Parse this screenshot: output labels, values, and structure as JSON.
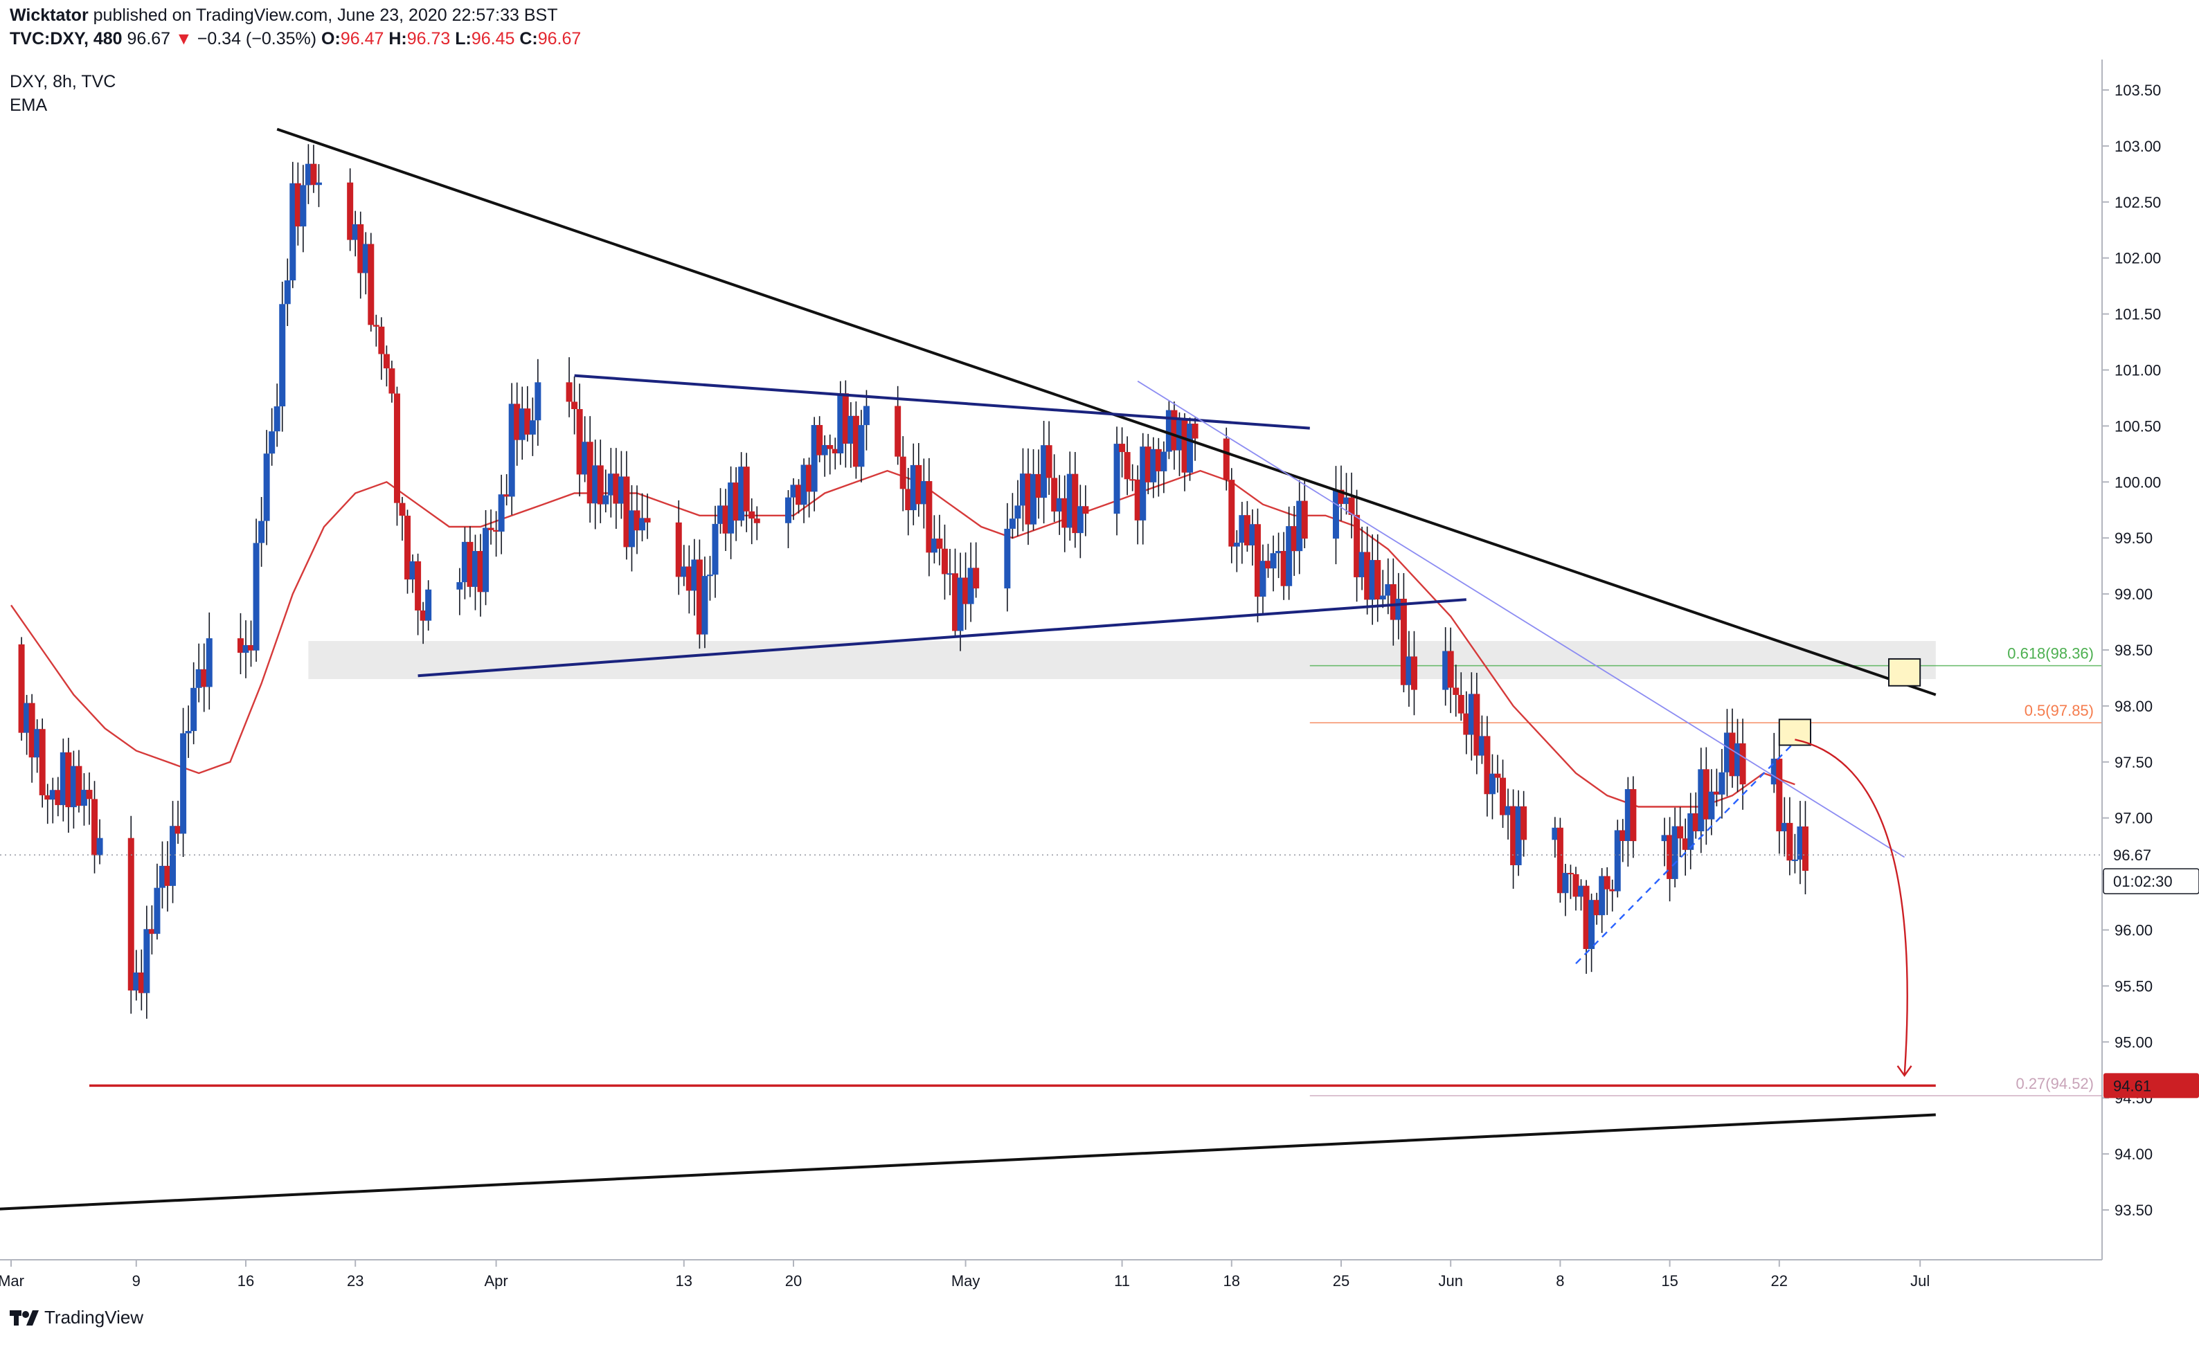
{
  "header": {
    "author": "Wicktator",
    "published_text": "published on TradingView.com, June 23, 2020 22:57:33 BST",
    "symbol": "TVC:DXY, 480",
    "last": "96.67",
    "change": "−0.34 (−0.35%)",
    "o_label": "O:",
    "o": "96.47",
    "h_label": "H:",
    "h": "96.73",
    "l_label": "L:",
    "l": "96.45",
    "c_label": "C:",
    "c": "96.67"
  },
  "legend": {
    "title": "DXY, 8h, TVC",
    "indicator": "EMA"
  },
  "footer": {
    "brand": "TradingView"
  },
  "colors": {
    "up": "#2157ba",
    "down": "#cc1f24",
    "ema": "#d63a3a",
    "trend": "#111111",
    "channel": "#1a237e",
    "fib_618": "#4caf50",
    "fib_05": "#f57c4d",
    "fib_027": "#c8a3b8",
    "zone": "#e6e6e6",
    "price_tag": "#131722",
    "target_tag": "#cc1f24"
  },
  "chart_data": {
    "type": "candlestick",
    "title": "DXY, 8h, TVC",
    "ylim": [
      93.25,
      103.75
    ],
    "yticks": [
      "93.50",
      "94.00",
      "94.50",
      "95.00",
      "95.50",
      "96.00",
      "96.50",
      "97.00",
      "97.50",
      "98.00",
      "98.50",
      "99.00",
      "99.50",
      "100.00",
      "100.50",
      "101.00",
      "101.50",
      "102.00",
      "102.50",
      "103.00",
      "103.50"
    ],
    "xticks": [
      {
        "label": "Mar",
        "date": "2020-03-01"
      },
      {
        "label": "9",
        "date": "2020-03-09"
      },
      {
        "label": "16",
        "date": "2020-03-16"
      },
      {
        "label": "23",
        "date": "2020-03-23"
      },
      {
        "label": "Apr",
        "date": "2020-04-01"
      },
      {
        "label": "13",
        "date": "2020-04-13"
      },
      {
        "label": "20",
        "date": "2020-04-20"
      },
      {
        "label": "May",
        "date": "2020-05-01"
      },
      {
        "label": "11",
        "date": "2020-05-11"
      },
      {
        "label": "18",
        "date": "2020-05-18"
      },
      {
        "label": "25",
        "date": "2020-05-25"
      },
      {
        "label": "Jun",
        "date": "2020-06-01"
      },
      {
        "label": "8",
        "date": "2020-06-08"
      },
      {
        "label": "15",
        "date": "2020-06-15"
      },
      {
        "label": "22",
        "date": "2020-06-22"
      },
      {
        "label": "Jul",
        "date": "2020-07-01"
      }
    ],
    "close_path": [
      [
        "2020-03-01",
        98.3
      ],
      [
        "2020-03-02",
        97.9
      ],
      [
        "2020-03-03",
        97.3
      ],
      [
        "2020-03-04",
        97.2
      ],
      [
        "2020-03-05",
        97.4
      ],
      [
        "2020-03-06",
        97.0
      ],
      [
        "2020-03-07",
        96.6
      ],
      [
        "2020-03-08",
        96.2
      ],
      [
        "2020-03-09",
        95.3
      ],
      [
        "2020-03-10",
        96.2
      ],
      [
        "2020-03-11",
        96.5
      ],
      [
        "2020-03-12",
        97.5
      ],
      [
        "2020-03-13",
        98.4
      ],
      [
        "2020-03-14",
        98.3
      ],
      [
        "2020-03-15",
        98.7
      ],
      [
        "2020-03-16",
        98.4
      ],
      [
        "2020-03-17",
        99.7
      ],
      [
        "2020-03-18",
        100.9
      ],
      [
        "2020-03-19",
        102.4
      ],
      [
        "2020-03-20",
        102.8
      ],
      [
        "2020-03-21",
        102.3
      ],
      [
        "2020-03-22",
        102.7
      ],
      [
        "2020-03-23",
        102.2
      ],
      [
        "2020-03-24",
        101.6
      ],
      [
        "2020-03-25",
        101.0
      ],
      [
        "2020-03-26",
        99.6
      ],
      [
        "2020-03-27",
        98.8
      ],
      [
        "2020-03-28",
        99.1
      ],
      [
        "2020-03-29",
        99.0
      ],
      [
        "2020-03-30",
        99.2
      ],
      [
        "2020-03-31",
        99.3
      ],
      [
        "2020-04-01",
        99.6
      ],
      [
        "2020-04-02",
        100.4
      ],
      [
        "2020-04-03",
        100.6
      ],
      [
        "2020-04-04",
        100.7
      ],
      [
        "2020-04-05",
        100.8
      ],
      [
        "2020-04-06",
        100.6
      ],
      [
        "2020-04-07",
        99.9
      ],
      [
        "2020-04-08",
        100.0
      ],
      [
        "2020-04-09",
        99.8
      ],
      [
        "2020-04-10",
        99.6
      ],
      [
        "2020-04-11",
        99.5
      ],
      [
        "2020-04-12",
        99.4
      ],
      [
        "2020-04-13",
        99.2
      ],
      [
        "2020-04-14",
        98.9
      ],
      [
        "2020-04-15",
        99.5
      ],
      [
        "2020-04-16",
        99.9
      ],
      [
        "2020-04-17",
        99.8
      ],
      [
        "2020-04-18",
        99.6
      ],
      [
        "2020-04-19",
        99.7
      ],
      [
        "2020-04-20",
        99.8
      ],
      [
        "2020-04-21",
        100.2
      ],
      [
        "2020-04-22",
        100.3
      ],
      [
        "2020-04-23",
        100.5
      ],
      [
        "2020-04-24",
        100.4
      ],
      [
        "2020-04-25",
        100.6
      ],
      [
        "2020-04-26",
        100.3
      ],
      [
        "2020-04-27",
        100.0
      ],
      [
        "2020-04-28",
        99.9
      ],
      [
        "2020-04-29",
        99.5
      ],
      [
        "2020-04-30",
        99.0
      ],
      [
        "2020-05-01",
        99.0
      ],
      [
        "2020-05-02",
        99.1
      ],
      [
        "2020-05-03",
        99.4
      ],
      [
        "2020-05-04",
        99.7
      ],
      [
        "2020-05-05",
        99.9
      ],
      [
        "2020-05-06",
        100.1
      ],
      [
        "2020-05-07",
        99.8
      ],
      [
        "2020-05-08",
        99.7
      ],
      [
        "2020-05-09",
        99.9
      ],
      [
        "2020-05-10",
        100.0
      ],
      [
        "2020-05-11",
        100.2
      ],
      [
        "2020-05-12",
        99.9
      ],
      [
        "2020-05-13",
        100.2
      ],
      [
        "2020-05-14",
        100.4
      ],
      [
        "2020-05-15",
        100.4
      ],
      [
        "2020-05-16",
        100.3
      ],
      [
        "2020-05-17",
        100.3
      ],
      [
        "2020-05-18",
        99.6
      ],
      [
        "2020-05-19",
        99.5
      ],
      [
        "2020-05-20",
        99.2
      ],
      [
        "2020-05-21",
        99.3
      ],
      [
        "2020-05-22",
        99.5
      ],
      [
        "2020-05-23",
        99.7
      ],
      [
        "2020-05-24",
        99.8
      ],
      [
        "2020-05-25",
        99.9
      ],
      [
        "2020-05-26",
        99.4
      ],
      [
        "2020-05-27",
        99.0
      ],
      [
        "2020-05-28",
        99.1
      ],
      [
        "2020-05-29",
        98.4
      ],
      [
        "2020-05-30",
        98.3
      ],
      [
        "2020-05-31",
        98.2
      ],
      [
        "2020-06-01",
        98.2
      ],
      [
        "2020-06-02",
        97.9
      ],
      [
        "2020-06-03",
        97.6
      ],
      [
        "2020-06-04",
        97.2
      ],
      [
        "2020-06-05",
        96.9
      ],
      [
        "2020-06-06",
        96.8
      ],
      [
        "2020-06-07",
        96.9
      ],
      [
        "2020-06-08",
        96.6
      ],
      [
        "2020-06-09",
        96.3
      ],
      [
        "2020-06-10",
        96.1
      ],
      [
        "2020-06-11",
        96.4
      ],
      [
        "2020-06-12",
        96.9
      ],
      [
        "2020-06-13",
        97.1
      ],
      [
        "2020-06-14",
        97.0
      ],
      [
        "2020-06-15",
        96.6
      ],
      [
        "2020-06-16",
        96.9
      ],
      [
        "2020-06-17",
        97.1
      ],
      [
        "2020-06-18",
        97.3
      ],
      [
        "2020-06-19",
        97.6
      ],
      [
        "2020-06-20",
        97.5
      ],
      [
        "2020-06-21",
        97.6
      ],
      [
        "2020-06-22",
        97.0
      ],
      [
        "2020-06-23",
        96.67
      ]
    ],
    "ema_path": [
      [
        "2020-03-01",
        98.9
      ],
      [
        "2020-03-03",
        98.5
      ],
      [
        "2020-03-05",
        98.1
      ],
      [
        "2020-03-07",
        97.8
      ],
      [
        "2020-03-09",
        97.6
      ],
      [
        "2020-03-11",
        97.5
      ],
      [
        "2020-03-13",
        97.4
      ],
      [
        "2020-03-15",
        97.5
      ],
      [
        "2020-03-17",
        98.2
      ],
      [
        "2020-03-19",
        99.0
      ],
      [
        "2020-03-21",
        99.6
      ],
      [
        "2020-03-23",
        99.9
      ],
      [
        "2020-03-25",
        100.0
      ],
      [
        "2020-03-27",
        99.8
      ],
      [
        "2020-03-29",
        99.6
      ],
      [
        "2020-03-31",
        99.6
      ],
      [
        "2020-04-02",
        99.7
      ],
      [
        "2020-04-04",
        99.8
      ],
      [
        "2020-04-06",
        99.9
      ],
      [
        "2020-04-08",
        99.9
      ],
      [
        "2020-04-10",
        99.9
      ],
      [
        "2020-04-12",
        99.8
      ],
      [
        "2020-04-14",
        99.7
      ],
      [
        "2020-04-16",
        99.7
      ],
      [
        "2020-04-18",
        99.7
      ],
      [
        "2020-04-20",
        99.7
      ],
      [
        "2020-04-22",
        99.9
      ],
      [
        "2020-04-24",
        100.0
      ],
      [
        "2020-04-26",
        100.1
      ],
      [
        "2020-04-28",
        100.0
      ],
      [
        "2020-04-30",
        99.8
      ],
      [
        "2020-05-02",
        99.6
      ],
      [
        "2020-05-04",
        99.5
      ],
      [
        "2020-05-06",
        99.6
      ],
      [
        "2020-05-08",
        99.7
      ],
      [
        "2020-05-10",
        99.8
      ],
      [
        "2020-05-12",
        99.9
      ],
      [
        "2020-05-14",
        100.0
      ],
      [
        "2020-05-16",
        100.1
      ],
      [
        "2020-05-18",
        100.0
      ],
      [
        "2020-05-20",
        99.8
      ],
      [
        "2020-05-22",
        99.7
      ],
      [
        "2020-05-24",
        99.7
      ],
      [
        "2020-05-26",
        99.6
      ],
      [
        "2020-05-28",
        99.4
      ],
      [
        "2020-05-30",
        99.1
      ],
      [
        "2020-06-01",
        98.8
      ],
      [
        "2020-06-03",
        98.4
      ],
      [
        "2020-06-05",
        98.0
      ],
      [
        "2020-06-07",
        97.7
      ],
      [
        "2020-06-09",
        97.4
      ],
      [
        "2020-06-11",
        97.2
      ],
      [
        "2020-06-13",
        97.1
      ],
      [
        "2020-06-15",
        97.1
      ],
      [
        "2020-06-17",
        97.1
      ],
      [
        "2020-06-19",
        97.2
      ],
      [
        "2020-06-21",
        97.4
      ],
      [
        "2020-06-23",
        97.3
      ]
    ],
    "trendlines": [
      {
        "from": [
          "2020-03-18",
          103.15
        ],
        "to": [
          "2020-07-02",
          98.1
        ]
      },
      {
        "from": [
          "2020-02-28",
          93.5
        ],
        "to": [
          "2020-07-02",
          94.35
        ]
      }
    ],
    "channel": [
      {
        "from": [
          "2020-04-06",
          100.95
        ],
        "to": [
          "2020-05-23",
          100.48
        ]
      },
      {
        "from": [
          "2020-03-27",
          98.27
        ],
        "to": [
          "2020-06-02",
          98.95
        ]
      }
    ],
    "thin_line": {
      "from": [
        "2020-05-12",
        100.9
      ],
      "to": [
        "2020-06-30",
        96.65
      ]
    },
    "zone": {
      "from_date": "2020-03-20",
      "to_date": "2020-07-02",
      "low": 98.24,
      "high": 98.58
    },
    "support_line": {
      "from_date": "2020-03-06",
      "to_date": "2020-07-02",
      "value": 94.61
    },
    "rising_dashed": {
      "from": [
        "2020-06-09",
        95.7
      ],
      "to": [
        "2020-06-23",
        97.68
      ]
    },
    "fib_levels": [
      {
        "label": "0.618(98.36)",
        "value": 98.36,
        "from_date": "2020-05-23"
      },
      {
        "label": "0.5(97.85)",
        "value": 97.85,
        "from_date": "2020-05-23"
      },
      {
        "label": "0.27(94.52)",
        "value": 94.52,
        "from_date": "2020-05-23"
      }
    ],
    "boxes": [
      {
        "date_from": "2020-06-29",
        "date_to": "2020-07-01",
        "low": 98.18,
        "high": 98.42
      },
      {
        "date_from": "2020-06-22",
        "date_to": "2020-06-24",
        "low": 97.65,
        "high": 97.88
      }
    ],
    "projection": {
      "from": [
        "2020-06-23",
        97.7
      ],
      "to": [
        "2020-06-30",
        94.7
      ]
    },
    "last_price_tag": "96.67",
    "countdown_tag": "01:02:30",
    "target_tag": "94.61"
  }
}
